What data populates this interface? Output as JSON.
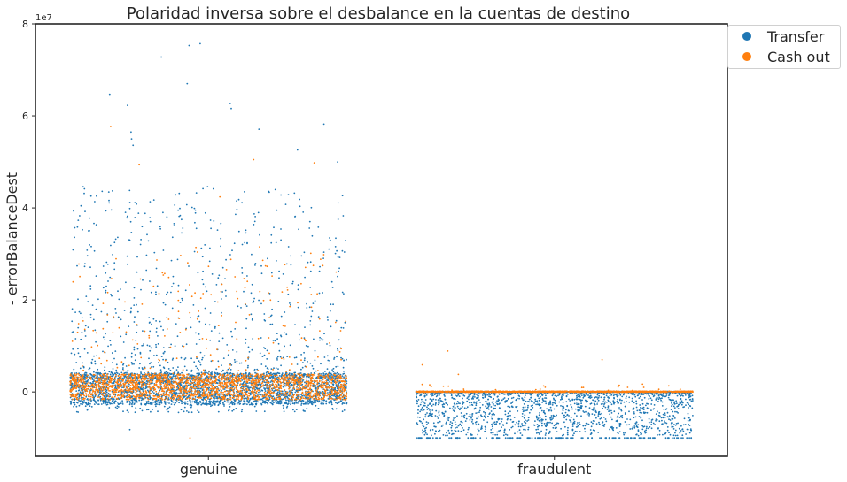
{
  "chart_data": {
    "type": "scatter",
    "title": "Polaridad inversa sobre el desbalance en la cuentas de destino",
    "ylabel": "- errorBalanceDest",
    "xlabel": "",
    "y_exponent_label": "1e7",
    "categories": [
      "genuine",
      "fraudulent"
    ],
    "y_ticks": [
      0,
      2,
      4,
      6,
      8
    ],
    "y_unit_scale": 10000000,
    "ylim": [
      -14000000,
      80000000
    ],
    "grid": false,
    "legend_position": "outside-top-right",
    "series": [
      {
        "name": "Transfer",
        "color": "#1f77b4"
      },
      {
        "name": "Cash out",
        "color": "#ff7f0e"
      }
    ],
    "notable_points": {
      "genuine": {
        "transfer_outliers": [
          75700000,
          75300000,
          72800000,
          67000000,
          64700000,
          62700000,
          62300000,
          61600000,
          58200000,
          57100000,
          56500000,
          55000000,
          53600000,
          52600000,
          50000000
        ],
        "cashout_outliers": [
          57700000,
          50500000,
          49800000,
          49400000,
          42400000
        ],
        "min_value": -10000000
      },
      "fraudulent": {
        "transfer_min": -10000000,
        "cashout_outliers": [
          8900000,
          7000000,
          5900000,
          3800000
        ]
      }
    }
  }
}
